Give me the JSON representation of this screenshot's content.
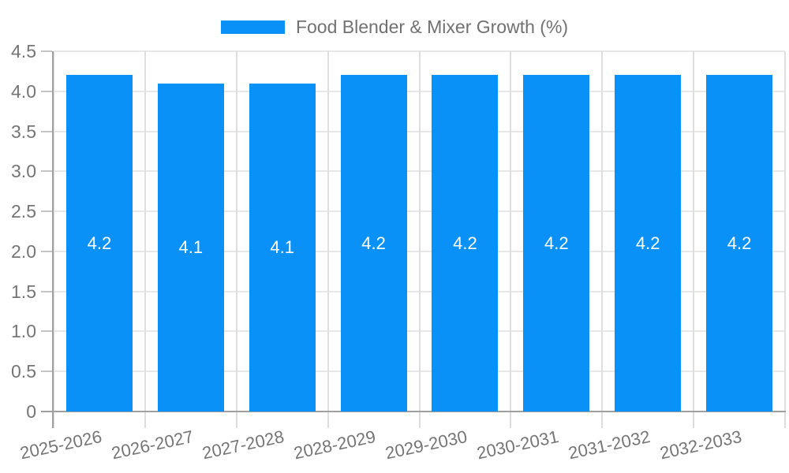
{
  "legend": {
    "label": "Food Blender & Mixer Growth (%)"
  },
  "chart_data": {
    "type": "bar",
    "title": "Food Blender & Mixer Growth (%)",
    "categories": [
      "2025-2026",
      "2026-2027",
      "2027-2028",
      "2028-2029",
      "2029-2030",
      "2030-2031",
      "2031-2032",
      "2032-2033"
    ],
    "series": [
      {
        "name": "Food Blender & Mixer Growth (%)",
        "values": [
          4.2,
          4.1,
          4.1,
          4.2,
          4.2,
          4.2,
          4.2,
          4.2
        ]
      }
    ],
    "value_labels": [
      "4.2",
      "4.1",
      "4.1",
      "4.2",
      "4.2",
      "4.2",
      "4.2",
      "4.2"
    ],
    "xlabel": "",
    "ylabel": "",
    "ylim": [
      0,
      4.5
    ],
    "ytick_values": [
      0,
      0.5,
      1,
      1.5,
      2,
      2.5,
      3,
      3.5,
      4,
      4.5
    ],
    "ytick_labels": [
      "0",
      "0.5",
      "1.0",
      "1.5",
      "2.0",
      "2.5",
      "3.0",
      "3.5",
      "4.0",
      "4.5"
    ],
    "grid": true,
    "legend_position": "top-center",
    "colors": {
      "bar": "#0a91f7",
      "h_grid": "#e7e7e7",
      "v_grid": "#dedede",
      "axis": "#a0a0a0",
      "y_tick_mark": "#c4c4c4",
      "x_tick_mark": "#dcdcdc",
      "tick_text": "#757575",
      "legend_text": "#717171",
      "value_label": "#ffffff"
    }
  }
}
